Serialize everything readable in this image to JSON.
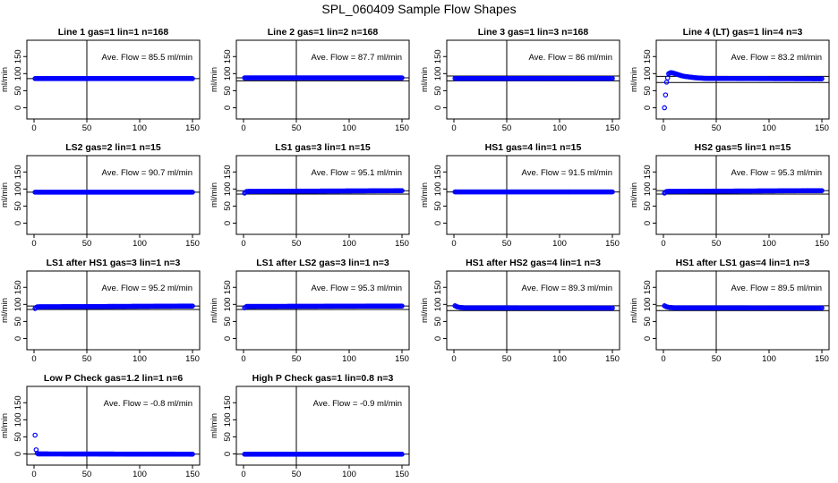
{
  "figure": {
    "title": "SPL_060409  Sample Flow Shapes"
  },
  "chart_data": [
    {
      "type": "scatter",
      "title": "Line 1 gas=1 lin=1 n=168",
      "ylabel": "ml/min",
      "annotation": "Ave. Flow =  85.5  ml/min",
      "xlim": [
        0,
        150
      ],
      "ylim": [
        -25,
        190
      ],
      "xticks": [
        0,
        50,
        100,
        150
      ],
      "yticks": [
        0,
        50,
        100,
        150
      ],
      "vline_x": 50,
      "hlines": [
        85.5
      ],
      "series": [
        {
          "color": "#0000ff",
          "x": [
            1,
            150
          ],
          "y": [
            85.5,
            85.5
          ]
        }
      ]
    },
    {
      "type": "scatter",
      "title": "Line 2 gas=1 lin=2 n=168",
      "ylabel": "ml/min",
      "annotation": "Ave. Flow =  87.7  ml/min",
      "xlim": [
        0,
        150
      ],
      "ylim": [
        -25,
        190
      ],
      "xticks": [
        0,
        50,
        100,
        150
      ],
      "yticks": [
        0,
        50,
        100,
        150
      ],
      "vline_x": 50,
      "hlines": [
        87.7,
        79
      ],
      "series": [
        {
          "color": "#0000ff",
          "x": [
            1,
            150
          ],
          "y": [
            87.7,
            87.7
          ]
        }
      ]
    },
    {
      "type": "scatter",
      "title": "Line 3 gas=1 lin=3 n=168",
      "ylabel": "ml/min",
      "annotation": "Ave. Flow =  86  ml/min",
      "xlim": [
        0,
        150
      ],
      "ylim": [
        -25,
        190
      ],
      "xticks": [
        0,
        50,
        100,
        150
      ],
      "yticks": [
        0,
        50,
        100,
        150
      ],
      "vline_x": 50,
      "hlines": [
        93,
        79
      ],
      "series": [
        {
          "color": "#0000ff",
          "x": [
            1,
            150
          ],
          "y": [
            86,
            86
          ]
        }
      ]
    },
    {
      "type": "scatter",
      "title": "Line 4 (LT) gas=1 lin=4 n=3",
      "ylabel": "ml/min",
      "annotation": "Ave. Flow =  83.2  ml/min",
      "xlim": [
        0,
        150
      ],
      "ylim": [
        -25,
        190
      ],
      "xticks": [
        0,
        50,
        100,
        150
      ],
      "yticks": [
        0,
        50,
        100,
        150
      ],
      "vline_x": 50,
      "hlines": [
        92,
        74
      ],
      "series": [
        {
          "color": "#0000ff",
          "x": [
            1,
            3,
            5,
            7,
            9,
            11,
            13,
            15,
            17,
            20,
            25,
            30,
            40,
            150
          ],
          "y": [
            0,
            75,
            100,
            103,
            102,
            100,
            98,
            96,
            94,
            92,
            90,
            88,
            86,
            85
          ]
        }
      ]
    },
    {
      "type": "scatter",
      "title": "LS2 gas=2 lin=1 n=15",
      "ylabel": "ml/min",
      "annotation": "Ave. Flow =  90.7  ml/min",
      "xlim": [
        0,
        150
      ],
      "ylim": [
        -25,
        190
      ],
      "xticks": [
        0,
        50,
        100,
        150
      ],
      "yticks": [
        0,
        50,
        100,
        150
      ],
      "vline_x": 50,
      "hlines": [
        90.7
      ],
      "series": [
        {
          "color": "#0000ff",
          "x": [
            1,
            150
          ],
          "y": [
            90.7,
            90.7
          ]
        }
      ]
    },
    {
      "type": "scatter",
      "title": "LS1 gas=3 lin=1 n=15",
      "ylabel": "ml/min",
      "annotation": "Ave. Flow =  95.1  ml/min",
      "xlim": [
        0,
        150
      ],
      "ylim": [
        -25,
        190
      ],
      "xticks": [
        0,
        50,
        100,
        150
      ],
      "yticks": [
        0,
        50,
        100,
        150
      ],
      "vline_x": 50,
      "hlines": [
        95.1,
        85
      ],
      "series": [
        {
          "color": "#0000ff",
          "x": [
            1,
            3,
            150
          ],
          "y": [
            88,
            93,
            95.1
          ]
        }
      ]
    },
    {
      "type": "scatter",
      "title": "HS1 gas=4 lin=1 n=15",
      "ylabel": "ml/min",
      "annotation": "Ave. Flow =  91.5  ml/min",
      "xlim": [
        0,
        150
      ],
      "ylim": [
        -25,
        190
      ],
      "xticks": [
        0,
        50,
        100,
        150
      ],
      "yticks": [
        0,
        50,
        100,
        150
      ],
      "vline_x": 50,
      "hlines": [
        91.5
      ],
      "series": [
        {
          "color": "#0000ff",
          "x": [
            1,
            150
          ],
          "y": [
            91.5,
            91.5
          ]
        }
      ]
    },
    {
      "type": "scatter",
      "title": "HS2 gas=5 lin=1 n=15",
      "ylabel": "ml/min",
      "annotation": "Ave. Flow =  95.3  ml/min",
      "xlim": [
        0,
        150
      ],
      "ylim": [
        -25,
        190
      ],
      "xticks": [
        0,
        50,
        100,
        150
      ],
      "yticks": [
        0,
        50,
        100,
        150
      ],
      "vline_x": 50,
      "hlines": [
        95.3,
        85
      ],
      "series": [
        {
          "color": "#0000ff",
          "x": [
            1,
            3,
            150
          ],
          "y": [
            88,
            93,
            95.3
          ]
        }
      ]
    },
    {
      "type": "scatter",
      "title": "LS1 after HS1 gas=3 lin=1 n=3",
      "ylabel": "ml/min",
      "annotation": "Ave. Flow =  95.2  ml/min",
      "xlim": [
        0,
        150
      ],
      "ylim": [
        -25,
        190
      ],
      "xticks": [
        0,
        50,
        100,
        150
      ],
      "yticks": [
        0,
        50,
        100,
        150
      ],
      "vline_x": 50,
      "hlines": [
        95.2,
        85
      ],
      "series": [
        {
          "color": "#0000ff",
          "x": [
            1,
            3,
            150
          ],
          "y": [
            88,
            93,
            95.2
          ]
        }
      ]
    },
    {
      "type": "scatter",
      "title": "LS1 after LS2 gas=3 lin=1 n=3",
      "ylabel": "ml/min",
      "annotation": "Ave. Flow =  95.3  ml/min",
      "xlim": [
        0,
        150
      ],
      "ylim": [
        -25,
        190
      ],
      "xticks": [
        0,
        50,
        100,
        150
      ],
      "yticks": [
        0,
        50,
        100,
        150
      ],
      "vline_x": 50,
      "hlines": [
        95.3,
        85
      ],
      "series": [
        {
          "color": "#0000ff",
          "x": [
            1,
            3,
            150
          ],
          "y": [
            90,
            94,
            95.3
          ]
        }
      ]
    },
    {
      "type": "scatter",
      "title": "HS1 after HS2 gas=4 lin=1 n=3",
      "ylabel": "ml/min",
      "annotation": "Ave. Flow =  89.3  ml/min",
      "xlim": [
        0,
        150
      ],
      "ylim": [
        -25,
        190
      ],
      "xticks": [
        0,
        50,
        100,
        150
      ],
      "yticks": [
        0,
        50,
        100,
        150
      ],
      "vline_x": 50,
      "hlines": [
        96,
        82
      ],
      "series": [
        {
          "color": "#0000ff",
          "x": [
            1,
            3,
            6,
            10,
            150
          ],
          "y": [
            96,
            93,
            91,
            90,
            89.3
          ]
        }
      ]
    },
    {
      "type": "scatter",
      "title": "HS1 after LS1 gas=4 lin=1 n=3",
      "ylabel": "ml/min",
      "annotation": "Ave. Flow =  89.5  ml/min",
      "xlim": [
        0,
        150
      ],
      "ylim": [
        -25,
        190
      ],
      "xticks": [
        0,
        50,
        100,
        150
      ],
      "yticks": [
        0,
        50,
        100,
        150
      ],
      "vline_x": 50,
      "hlines": [
        96,
        82
      ],
      "series": [
        {
          "color": "#0000ff",
          "x": [
            1,
            3,
            6,
            10,
            150
          ],
          "y": [
            96,
            93,
            91,
            90,
            89.5
          ]
        }
      ]
    },
    {
      "type": "scatter",
      "title": "Low P Check gas=1.2 lin=1 n=6",
      "ylabel": "ml/min",
      "annotation": "Ave. Flow =  -0.8  ml/min",
      "xlim": [
        0,
        150
      ],
      "ylim": [
        -25,
        190
      ],
      "xticks": [
        0,
        50,
        100,
        150
      ],
      "yticks": [
        0,
        50,
        100,
        150
      ],
      "vline_x": 50,
      "hlines": [
        -0.8
      ],
      "series": [
        {
          "color": "#0000ff",
          "x": [
            1,
            2,
            3,
            4,
            150
          ],
          "y": [
            55,
            12,
            2,
            0,
            -0.8
          ]
        }
      ]
    },
    {
      "type": "scatter",
      "title": "High P Check gas=1 lin=0.8 n=3",
      "ylabel": "ml/min",
      "annotation": "Ave. Flow =  -0.9  ml/min",
      "xlim": [
        0,
        150
      ],
      "ylim": [
        -25,
        190
      ],
      "xticks": [
        0,
        50,
        100,
        150
      ],
      "yticks": [
        0,
        50,
        100,
        150
      ],
      "vline_x": 50,
      "hlines": [
        -0.9
      ],
      "series": [
        {
          "color": "#0000ff",
          "x": [
            1,
            150
          ],
          "y": [
            -0.9,
            -0.9
          ]
        }
      ]
    }
  ]
}
